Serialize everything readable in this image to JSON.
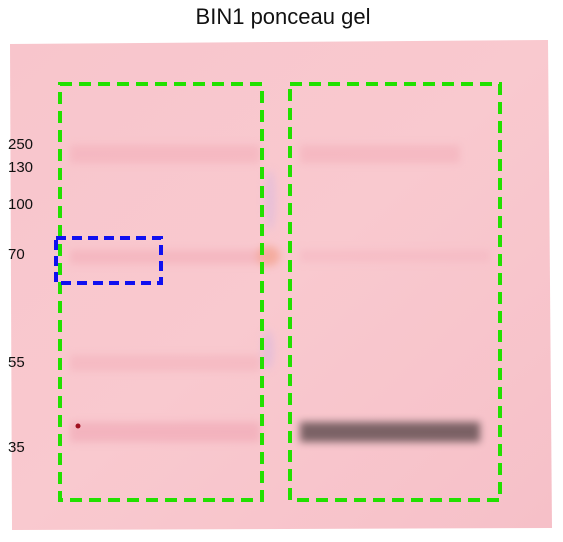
{
  "title": "BIN1 ponceau gel",
  "markers": [
    "250",
    "130",
    "100",
    "70",
    "55",
    "35"
  ]
}
